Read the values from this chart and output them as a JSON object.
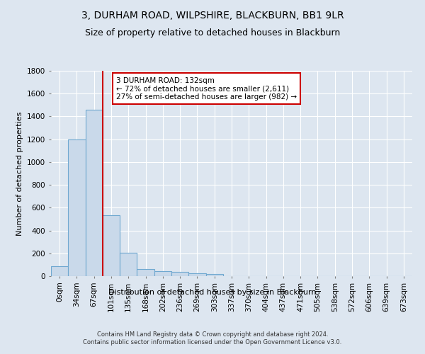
{
  "title": "3, DURHAM ROAD, WILPSHIRE, BLACKBURN, BB1 9LR",
  "subtitle": "Size of property relative to detached houses in Blackburn",
  "xlabel": "Distribution of detached houses by size in Blackburn",
  "ylabel": "Number of detached properties",
  "bar_labels": [
    "0sqm",
    "34sqm",
    "67sqm",
    "101sqm",
    "135sqm",
    "168sqm",
    "202sqm",
    "236sqm",
    "269sqm",
    "303sqm",
    "337sqm",
    "370sqm",
    "404sqm",
    "437sqm",
    "471sqm",
    "505sqm",
    "538sqm",
    "572sqm",
    "606sqm",
    "639sqm",
    "673sqm"
  ],
  "bar_values": [
    90,
    1200,
    1460,
    535,
    205,
    65,
    45,
    35,
    27,
    20,
    0,
    0,
    0,
    0,
    0,
    0,
    0,
    0,
    0,
    0,
    0
  ],
  "bar_color": "#c9d9ea",
  "bar_edge_color": "#6fa8d0",
  "vline_x": 3,
  "vline_color": "#cc0000",
  "annotation_text": "3 DURHAM ROAD: 132sqm\n← 72% of detached houses are smaller (2,611)\n27% of semi-detached houses are larger (982) →",
  "annotation_box_color": "#ffffff",
  "annotation_box_edge": "#cc0000",
  "ylim": [
    0,
    1800
  ],
  "yticks": [
    0,
    200,
    400,
    600,
    800,
    1000,
    1200,
    1400,
    1600,
    1800
  ],
  "bg_color": "#dde6f0",
  "plot_bg_color": "#dde6f0",
  "grid_color": "#ffffff",
  "footer_line1": "Contains HM Land Registry data © Crown copyright and database right 2024.",
  "footer_line2": "Contains public sector information licensed under the Open Government Licence v3.0.",
  "title_fontsize": 10,
  "subtitle_fontsize": 9,
  "xlabel_fontsize": 8,
  "ylabel_fontsize": 8,
  "tick_fontsize": 7.5,
  "annot_fontsize": 7.5
}
